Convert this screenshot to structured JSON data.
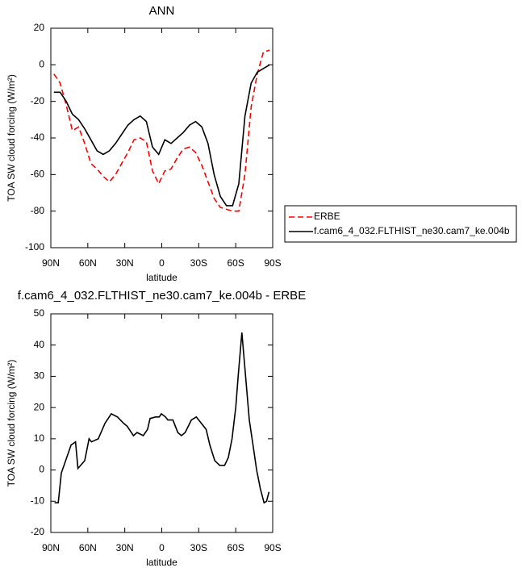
{
  "chart_data": [
    {
      "type": "line",
      "title": "ANN",
      "xlabel": "latitude",
      "ylabel": "TOA SW cloud forcing (W/m²)",
      "x": [
        87.5,
        82.5,
        77.5,
        72.5,
        67.5,
        62.5,
        57.5,
        52.5,
        47.5,
        42.5,
        37.5,
        32.5,
        27.5,
        22.5,
        17.5,
        12.5,
        7.5,
        2.5,
        -2.5,
        -7.5,
        -12.5,
        -17.5,
        -22.5,
        -27.5,
        -32.5,
        -37.5,
        -42.5,
        -47.5,
        -52.5,
        -57.5,
        -62.5,
        -67.5,
        -72.5,
        -77.5,
        -82.5,
        -87.5
      ],
      "series": [
        {
          "name": "ERBE",
          "color": "#ff0000",
          "dashed": true,
          "values": [
            -5,
            -10,
            -22,
            -36,
            -34,
            -43,
            -54,
            -57,
            -61,
            -64,
            -60,
            -54,
            -48,
            -41,
            -40,
            -42,
            -58,
            -65,
            -58,
            -57,
            -51,
            -46,
            -45,
            -48,
            -55,
            -64,
            -73,
            -78,
            -79,
            -80,
            -80,
            -60,
            -23,
            -5,
            7,
            8
          ]
        },
        {
          "name": "f.cam6_4_032.FLTHIST_ne30.cam7_ke.004b",
          "color": "#000000",
          "dashed": false,
          "values": [
            -15,
            -15,
            -20,
            -27,
            -30,
            -35,
            -41,
            -47,
            -49,
            -47,
            -43,
            -38,
            -33,
            -30,
            -28,
            -31,
            -45,
            -49,
            -41,
            -43,
            -40,
            -37,
            -33,
            -31,
            -34,
            -43,
            -60,
            -72,
            -77,
            -77,
            -65,
            -28,
            -10,
            -4,
            -2,
            0
          ]
        }
      ],
      "xlim": [
        90,
        -90
      ],
      "xticks": [
        {
          "value": 90,
          "label": "90N"
        },
        {
          "value": 60,
          "label": "60N"
        },
        {
          "value": 30,
          "label": "30N"
        },
        0,
        {
          "value": -30,
          "label": "30S"
        },
        {
          "value": -60,
          "label": "60S"
        },
        {
          "value": -90,
          "label": "90S"
        }
      ],
      "ylim": [
        -100,
        20
      ],
      "yticks": [
        -100,
        -80,
        -60,
        -40,
        -20,
        0,
        20
      ]
    },
    {
      "type": "line",
      "title": "f.cam6_4_032.FLTHIST_ne30.cam7_ke.004b - ERBE",
      "xlabel": "latitude",
      "ylabel": "TOA SW cloud forcing (W/m²)",
      "x": [
        87,
        84,
        81.5,
        73.6,
        70,
        68,
        62.5,
        59,
        57,
        51.5,
        46,
        41,
        36,
        31,
        28,
        23,
        20,
        15,
        11.5,
        9.5,
        5,
        2,
        0.3,
        -3,
        -5,
        -9,
        -13,
        -16,
        -19,
        -24,
        -28,
        -32,
        -36,
        -39,
        -43,
        -47,
        -51,
        -54,
        -57,
        -60,
        -62,
        -65,
        -68,
        -71,
        -74,
        -77,
        -80,
        -83,
        -85,
        -87
      ],
      "series": [
        {
          "name": "f.cam6_4_032.FLTHIST_ne30.cam7_ke.004b - ERBE",
          "color": "#000000",
          "dashed": false,
          "values": [
            -10.5,
            -10.5,
            -1,
            8,
            9,
            0.5,
            3,
            10,
            9,
            10,
            15,
            18,
            17,
            15,
            14,
            11,
            12,
            11,
            13,
            16.5,
            17,
            17,
            18,
            17,
            16,
            16,
            12,
            11,
            12,
            16,
            17,
            15,
            13,
            8,
            3,
            1.5,
            1.5,
            4,
            10,
            20,
            30,
            44,
            30,
            16,
            8,
            0,
            -6,
            -10.5,
            -10,
            -7
          ]
        }
      ],
      "xlim": [
        90,
        -90
      ],
      "xticks": [
        {
          "value": 90,
          "label": "90N"
        },
        {
          "value": 60,
          "label": "60N"
        },
        {
          "value": 30,
          "label": "30N"
        },
        0,
        {
          "value": -30,
          "label": "30S"
        },
        {
          "value": -60,
          "label": "60S"
        },
        {
          "value": -90,
          "label": "90S"
        }
      ],
      "ylim": [
        -20,
        50
      ],
      "yticks": [
        -20,
        -10,
        0,
        10,
        20,
        30,
        40,
        50
      ]
    }
  ]
}
